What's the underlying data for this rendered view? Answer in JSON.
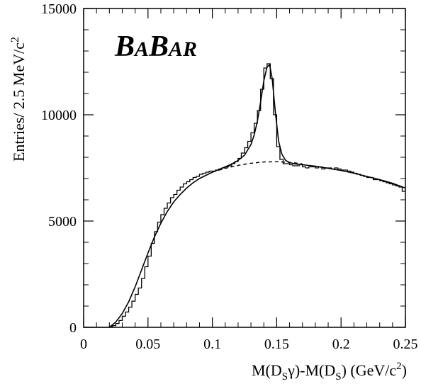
{
  "chart_data": {
    "type": "line",
    "title": "",
    "logo_text": "BABAR",
    "xlabel": "M(D_Sγ)-M(D_S) (GeV/c²)",
    "ylabel": "Entries/ 2.5 MeV/c²",
    "xlim": [
      0,
      0.25
    ],
    "ylim": [
      0,
      15000
    ],
    "x_ticks": [
      {
        "value": 0,
        "label": "0"
      },
      {
        "value": 0.05,
        "label": "0.05"
      },
      {
        "value": 0.1,
        "label": "0.1"
      },
      {
        "value": 0.15,
        "label": "0.15"
      },
      {
        "value": 0.2,
        "label": "0.2"
      },
      {
        "value": 0.25,
        "label": "0.25"
      }
    ],
    "y_ticks": [
      {
        "value": 0,
        "label": "0"
      },
      {
        "value": 5000,
        "label": "5000"
      },
      {
        "value": 10000,
        "label": "10000"
      },
      {
        "value": 15000,
        "label": "15000"
      }
    ],
    "bin_width": 0.0025,
    "series": [
      {
        "style": "histogram",
        "x": [
          0.0,
          0.0025,
          0.005,
          0.0075,
          0.01,
          0.0125,
          0.015,
          0.0175,
          0.02,
          0.0225,
          0.025,
          0.0275,
          0.03,
          0.0325,
          0.035,
          0.0375,
          0.04,
          0.0425,
          0.045,
          0.0475,
          0.05,
          0.0525,
          0.055,
          0.0575,
          0.06,
          0.0625,
          0.065,
          0.0675,
          0.07,
          0.0725,
          0.075,
          0.0775,
          0.08,
          0.0825,
          0.085,
          0.0875,
          0.09,
          0.0925,
          0.095,
          0.0975,
          0.1,
          0.1025,
          0.105,
          0.1075,
          0.11,
          0.1125,
          0.115,
          0.1175,
          0.12,
          0.1225,
          0.125,
          0.1275,
          0.13,
          0.1325,
          0.135,
          0.1375,
          0.14,
          0.1425,
          0.145,
          0.1475,
          0.15,
          0.1525,
          0.155,
          0.1575,
          0.16,
          0.1625,
          0.165,
          0.1675,
          0.17,
          0.1725,
          0.175,
          0.1775,
          0.18,
          0.1825,
          0.185,
          0.1875,
          0.19,
          0.1925,
          0.195,
          0.1975,
          0.2,
          0.2025,
          0.205,
          0.2075,
          0.21,
          0.2125,
          0.215,
          0.2175,
          0.22,
          0.2225,
          0.225,
          0.2275,
          0.23,
          0.2325,
          0.235,
          0.2375,
          0.24,
          0.2425,
          0.245,
          0.2475
        ],
        "values": [
          0,
          0,
          0,
          0,
          0,
          0,
          0,
          0,
          30,
          80,
          180,
          320,
          520,
          720,
          950,
          1230,
          1550,
          1850,
          2300,
          2850,
          3350,
          3950,
          4500,
          4950,
          5300,
          5600,
          5850,
          6100,
          6250,
          6450,
          6600,
          6750,
          6850,
          6950,
          7050,
          7100,
          7200,
          7250,
          7300,
          7350,
          7350,
          7400,
          7450,
          7500,
          7550,
          7600,
          7700,
          7800,
          7950,
          8200,
          8450,
          8750,
          9150,
          9600,
          10200,
          11200,
          12200,
          12400,
          11700,
          10000,
          8500,
          7900,
          7700,
          7700,
          7650,
          7600,
          7600,
          7650,
          7550,
          7500,
          7550,
          7550,
          7500,
          7550,
          7450,
          7500,
          7500,
          7450,
          7500,
          7450,
          7400,
          7400,
          7350,
          7300,
          7250,
          7200,
          7150,
          7100,
          7050,
          7050,
          6950,
          6950,
          6900,
          6850,
          6800,
          6750,
          6700,
          6650,
          6600,
          6400
        ]
      },
      {
        "style": "fit-total",
        "x": [
          0.02,
          0.025,
          0.03,
          0.035,
          0.04,
          0.045,
          0.05,
          0.055,
          0.06,
          0.065,
          0.07,
          0.075,
          0.08,
          0.085,
          0.09,
          0.095,
          0.1,
          0.105,
          0.11,
          0.115,
          0.12,
          0.125,
          0.13,
          0.1325,
          0.135,
          0.1375,
          0.14,
          0.1425,
          0.1445,
          0.1465,
          0.149,
          0.1515,
          0.154,
          0.157,
          0.16,
          0.165,
          0.17,
          0.18,
          0.19,
          0.2,
          0.21,
          0.22,
          0.23,
          0.24,
          0.25
        ],
        "values": [
          0,
          250,
          650,
          1200,
          1900,
          2700,
          3500,
          4250,
          4900,
          5450,
          5900,
          6250,
          6550,
          6800,
          7000,
          7150,
          7300,
          7420,
          7550,
          7680,
          7850,
          8100,
          8600,
          9050,
          9700,
          10600,
          11600,
          12250,
          12350,
          11700,
          10100,
          8750,
          8150,
          7850,
          7750,
          7680,
          7650,
          7580,
          7480,
          7380,
          7250,
          7100,
          6950,
          6780,
          6550
        ]
      },
      {
        "style": "fit-background",
        "x": [
          0.1,
          0.11,
          0.12,
          0.13,
          0.14,
          0.15,
          0.16,
          0.165,
          0.17
        ],
        "values": [
          7300,
          7480,
          7620,
          7720,
          7780,
          7790,
          7760,
          7730,
          7690
        ]
      }
    ]
  }
}
